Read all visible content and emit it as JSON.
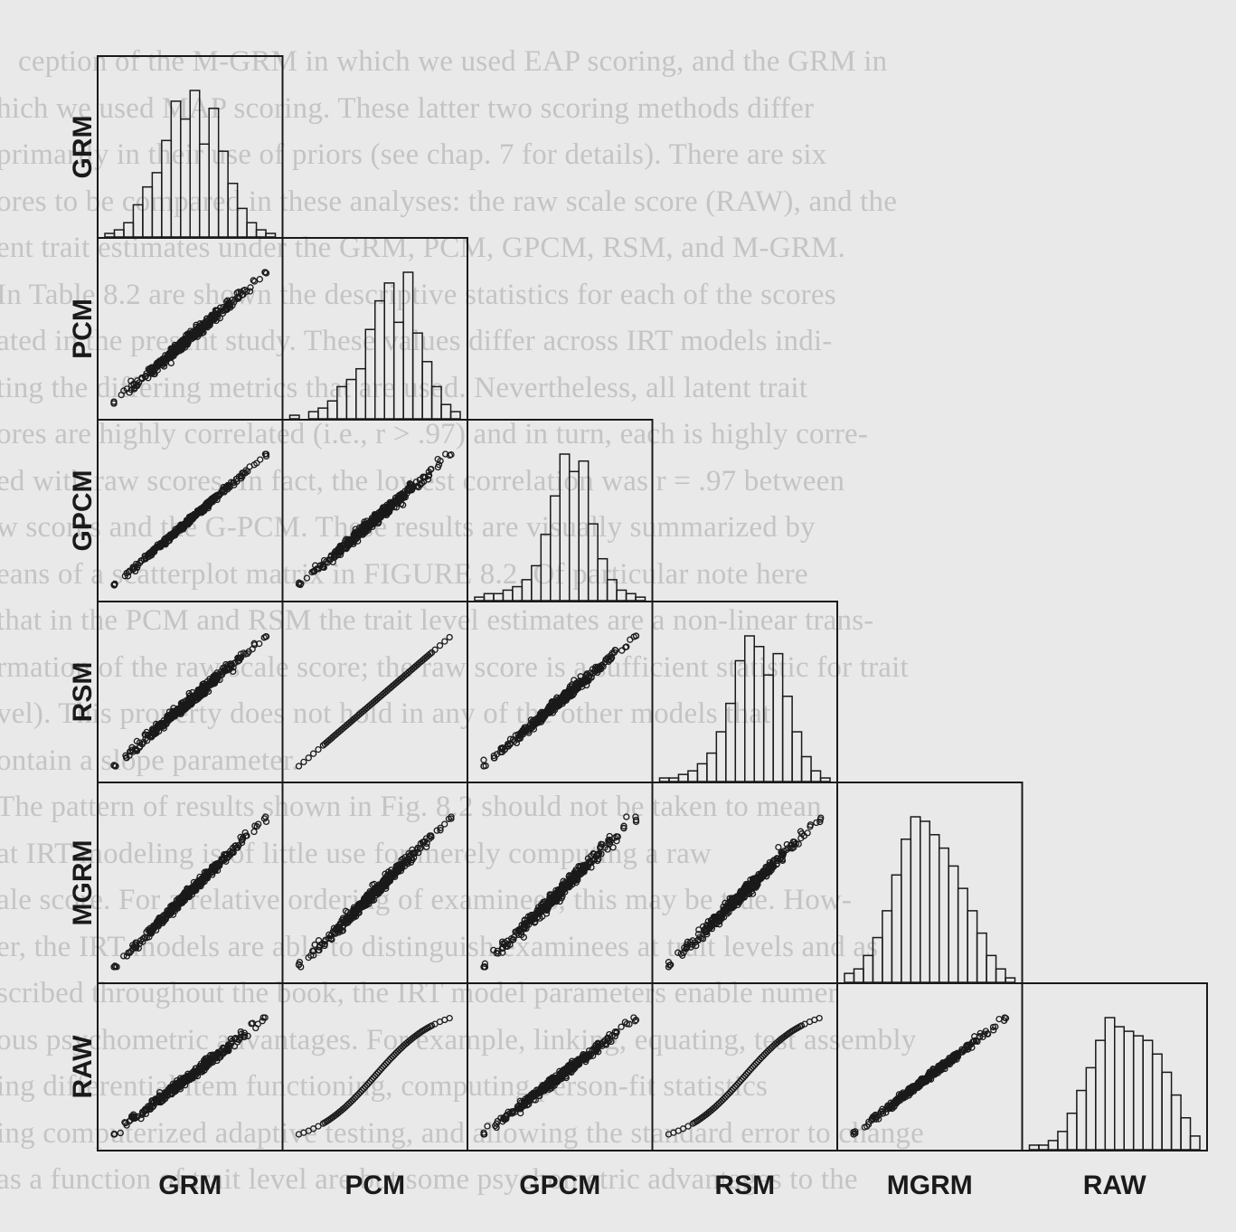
{
  "background_text": [
    "ception of the M-GRM in which we used EAP scoring, and the GRM in",
    "hich we used MAP scoring. These latter two scoring methods differ",
    "primarily in their use of priors (see chap. 7 for details). There are six",
    "ores to be compared in these analyses: the raw scale score (RAW), and the",
    "ent trait estimates under the GRM, PCM, GPCM, RSM, and M-GRM.",
    "In Table 8.2 are shown the descriptive statistics for each of the scores",
    "ated in the present study. These values differ across IRT models indi-",
    "ting the differing metrics that are used. Nevertheless, all latent trait",
    "ores are highly correlated (i.e., r > .97) and in turn, each is highly corre-",
    "ed with raw scores. In fact, the lowest correlation was r = .97 between",
    "w scores and the G-PCM. These results are visually summarized by",
    "eans of a scatterplot matrix in FIGURE 8.2. Of particular note here",
    "that in the PCM and RSM the trait level estimates are a non-linear trans-",
    "rmation of the raw scale score; the raw score is a sufficient statistic for trait",
    "vel). This property does not hold in any of the other models that",
    "ontain a slope parameter.",
    "The pattern of results shown in Fig. 8.2 should not be taken to mean",
    "at IRT modeling is of little use for merely computing a raw",
    "ale score. For a relative ordering of examinees, this may be true. How-",
    "er, the IRT models are able to distinguish examinees at trait levels and as",
    "scribed throughout the book, the IRT model parameters enable numer",
    "ous psychometric advantages. For example, linking, equating, test assembly",
    "ing differential item functioning, computing person-fit statistics",
    "ing computerized adaptive testing, and allowing the standard error to change",
    "as a function of trait level are but some psychometric advantages to the"
  ],
  "chart_data": {
    "type": "scatterplot-matrix",
    "variables": [
      "GRM",
      "PCM",
      "GPCM",
      "RSM",
      "MGRM",
      "RAW"
    ],
    "layout": "lower-triangle scatterplots, histograms on diagonal",
    "histograms": {
      "GRM": [
        1,
        2,
        4,
        9,
        14,
        18,
        27,
        38,
        33,
        41,
        26,
        36,
        24,
        15,
        8,
        4,
        2,
        1
      ],
      "PCM": [
        1,
        0,
        2,
        3,
        5,
        9,
        11,
        14,
        25,
        33,
        38,
        27,
        41,
        24,
        16,
        9,
        4,
        2
      ],
      "GPCM": [
        1,
        2,
        2,
        3,
        4,
        6,
        10,
        19,
        30,
        42,
        37,
        40,
        22,
        12,
        6,
        3,
        2,
        1
      ],
      "RSM": [
        1,
        1,
        2,
        3,
        5,
        8,
        14,
        22,
        34,
        41,
        38,
        30,
        36,
        24,
        14,
        7,
        3,
        1
      ],
      "MGRM": [
        2,
        3,
        6,
        10,
        16,
        24,
        32,
        37,
        36,
        33,
        30,
        26,
        21,
        16,
        11,
        6,
        3,
        1
      ],
      "RAW": [
        1,
        1,
        2,
        4,
        8,
        13,
        18,
        24,
        29,
        27,
        26,
        25,
        24,
        21,
        17,
        12,
        7,
        3
      ]
    },
    "scatter_panels": [
      {
        "x": "GRM",
        "y": "PCM",
        "relation": "linear",
        "r": 0.97
      },
      {
        "x": "GRM",
        "y": "GPCM",
        "relation": "linear",
        "r": 0.99
      },
      {
        "x": "PCM",
        "y": "GPCM",
        "relation": "linear",
        "r": 0.97
      },
      {
        "x": "GRM",
        "y": "RSM",
        "relation": "linear",
        "r": 0.97
      },
      {
        "x": "PCM",
        "y": "RSM",
        "relation": "identical-monotone",
        "r": 1.0
      },
      {
        "x": "GPCM",
        "y": "RSM",
        "relation": "linear",
        "r": 0.97
      },
      {
        "x": "GRM",
        "y": "MGRM",
        "relation": "linear",
        "r": 0.98
      },
      {
        "x": "PCM",
        "y": "MGRM",
        "relation": "linear",
        "r": 0.97
      },
      {
        "x": "GPCM",
        "y": "MGRM",
        "relation": "linear",
        "r": 0.97
      },
      {
        "x": "RSM",
        "y": "MGRM",
        "relation": "linear",
        "r": 0.97
      },
      {
        "x": "GRM",
        "y": "RAW",
        "relation": "linear",
        "r": 0.97
      },
      {
        "x": "PCM",
        "y": "RAW",
        "relation": "s-curve",
        "r": 0.98
      },
      {
        "x": "GPCM",
        "y": "RAW",
        "relation": "linear",
        "r": 0.97
      },
      {
        "x": "RSM",
        "y": "RAW",
        "relation": "s-curve",
        "r": 0.98
      },
      {
        "x": "MGRM",
        "y": "RAW",
        "relation": "linear",
        "r": 0.98
      }
    ],
    "grid": false,
    "colors": {
      "ink": "#1a1a1a",
      "paper": "#e9e9e9"
    }
  }
}
